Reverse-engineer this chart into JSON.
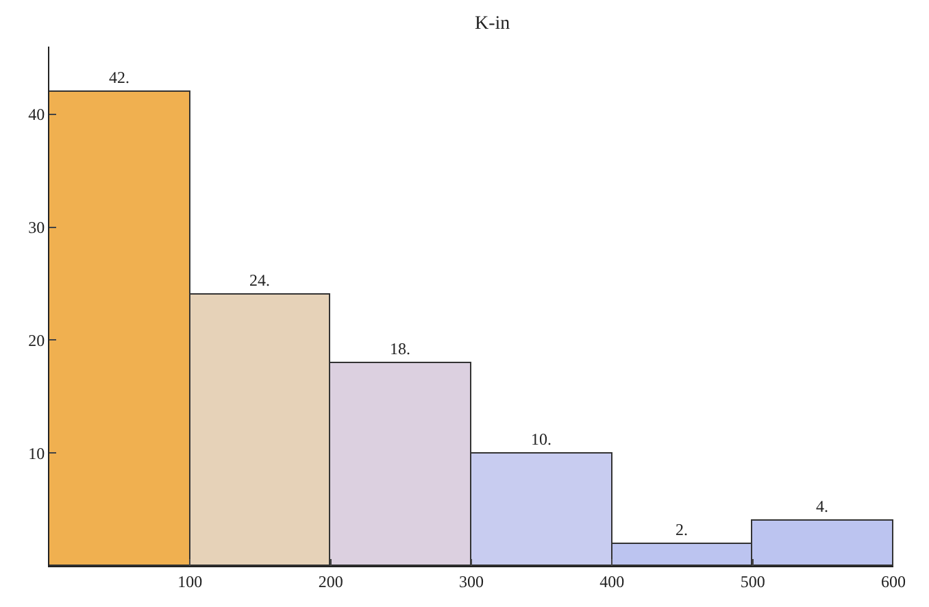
{
  "chart_data": {
    "type": "histogram",
    "title": "K-in",
    "bins": [
      0,
      100,
      200,
      300,
      400,
      500,
      600
    ],
    "values": [
      42,
      24,
      18,
      10,
      2,
      4
    ],
    "value_labels": [
      "42.",
      "24.",
      "18.",
      "10.",
      "2.",
      "4."
    ],
    "colors": [
      "#f0b050",
      "#e6d2b8",
      "#dcd0e0",
      "#c8ccf0",
      "#bcc4f0",
      "#bcc4f0"
    ],
    "xlim": [
      0,
      600
    ],
    "xticks": [
      100,
      200,
      300,
      400,
      500,
      600
    ],
    "ylim": [
      0,
      46
    ],
    "yticks": [
      10,
      20,
      30,
      40
    ]
  }
}
